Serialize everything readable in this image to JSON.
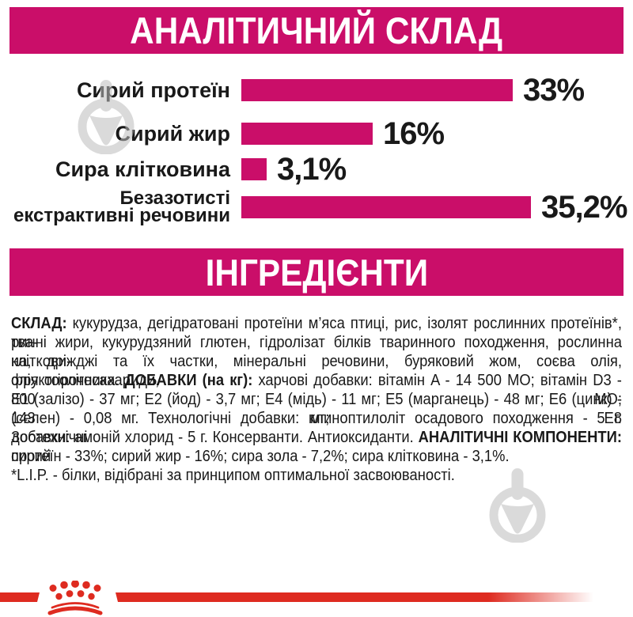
{
  "colors": {
    "magenta": "#ca0e69",
    "red": "#de2b20",
    "text": "#191919",
    "watermark": "#bdbdbd"
  },
  "banners": {
    "analytical": "АНАЛІТИЧНИЙ СКЛАД",
    "ingredients": "ІНГРЕДІЄНТИ"
  },
  "chart_data": {
    "type": "bar",
    "orientation": "horizontal",
    "title": "АНАЛІТИЧНИЙ СКЛАД",
    "unit": "%",
    "categories": [
      "Сирий протеїн",
      "Сирий жир",
      "Сира клітковина",
      "Безазотисті екстрактивні речовини"
    ],
    "values": [
      33,
      16,
      3.1,
      35.2
    ],
    "bars": [
      {
        "label_lines": [
          "Сирий протеїн"
        ],
        "value": 33,
        "value_label": "33%"
      },
      {
        "label_lines": [
          "Сирий жир"
        ],
        "value": 16,
        "value_label": "16%"
      },
      {
        "label_lines": [
          "Сира клітковина"
        ],
        "value": 3.1,
        "value_label": "3,1%"
      },
      {
        "label_lines": [
          "Безазотисті",
          "екстрактивні речовини"
        ],
        "value": 35.2,
        "value_label": "35,2%"
      }
    ],
    "xlim": [
      0,
      38
    ],
    "bar_color": "#ca0e69",
    "grid": false,
    "legend": false
  },
  "ingredients": {
    "lines": [
      {
        "justify": true,
        "segments": [
          {
            "bold": true,
            "text": "СКЛАД: "
          },
          {
            "bold": false,
            "text": "кукурудза, дегідратовані протеїни м’яса птиці, рис, ізолят рослинних протеїнів*, тва-"
          }
        ]
      },
      {
        "justify": true,
        "segments": [
          {
            "bold": false,
            "text": "ринні жири, кукурудзяний глютен, гідролізат білків тваринного походження, рослинна кліткови-"
          }
        ]
      },
      {
        "justify": true,
        "segments": [
          {
            "bold": false,
            "text": "на, дріжджі та їх частки, мінеральні речовини, буряковий жом, соєва олія, фруктоолігосахариди,"
          }
        ]
      },
      {
        "justify": true,
        "segments": [
          {
            "bold": false,
            "text": "олія огірочника. "
          },
          {
            "bold": true,
            "text": "ДОБАВКИ (на кг): "
          },
          {
            "bold": false,
            "text": "харчові добавки: вітамін A - 14 500 МО; вітамін D3 - 800 МО;"
          }
        ]
      },
      {
        "justify": true,
        "segments": [
          {
            "bold": false,
            "text": "E1 (залізо) - 37 мг; E2 (йод) - 3,7 мг; E4 (мідь) - 11 мг; E5 (марганець) - 48 мг; E6 (цинк) - 143 мг; E8"
          }
        ]
      },
      {
        "justify": true,
        "segments": [
          {
            "bold": false,
            "text": "(селен) - 0,08 мг. Технологічні добавки: клиноптилоліт осадового походження - 5 г. Зоотехнічні"
          }
        ]
      },
      {
        "justify": true,
        "segments": [
          {
            "bold": false,
            "text": "добавки: амоній хлорид - 5 г. Консерванти. Антиоксиданти. "
          },
          {
            "bold": true,
            "text": "АНАЛІТИЧНІ КОМПОНЕНТИ: "
          },
          {
            "bold": false,
            "text": "сирий"
          }
        ]
      },
      {
        "justify": false,
        "segments": [
          {
            "bold": false,
            "text": "протеїн - 33%; сирий жир - 16%; сира зола - 7,2%; сира клітковина - 3,1%."
          }
        ]
      },
      {
        "justify": false,
        "segments": [
          {
            "bold": false,
            "text": "*L.I.P. - білки, відібрані за принципом оптимальної засвоюваності."
          }
        ]
      }
    ]
  }
}
